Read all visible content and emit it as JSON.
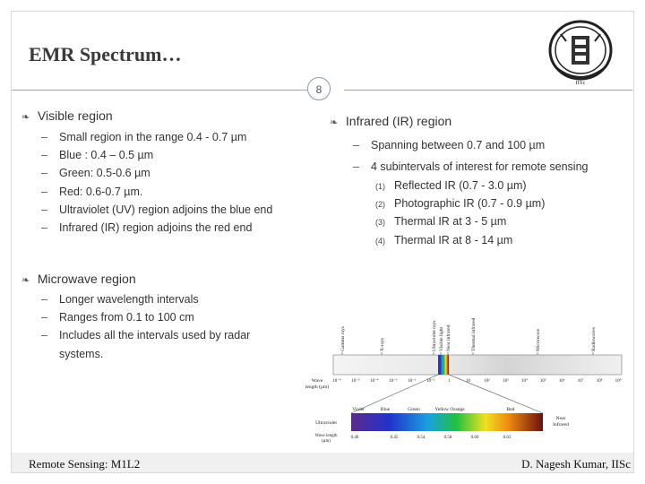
{
  "title": "EMR Spectrum…",
  "slide_number": "8",
  "logo": {
    "icon": "iisc-emblem",
    "text": "IISc"
  },
  "visible": {
    "heading": "Visible region",
    "items": [
      "Small region in the range 0.4 - 0.7 µm",
      "Blue : 0.4 – 0.5 µm",
      "Green: 0.5-0.6 µm",
      "Red: 0.6-0.7 µm.",
      "Ultraviolet (UV) region adjoins the blue end",
      "Infrared (IR) region adjoins the red end"
    ]
  },
  "infrared": {
    "heading": "Infrared (IR) region",
    "items": [
      "Spanning between 0.7 and 100 µm",
      "4 subintervals of interest for remote sensing"
    ],
    "subintervals": [
      {
        "num": "(1)",
        "text": "Reflected IR (0.7 - 3.0 µm)"
      },
      {
        "num": "(2)",
        "text": "Photographic IR (0.7 - 0.9 µm)"
      },
      {
        "num": "(3)",
        "text": "Thermal IR at 3 - 5 µm"
      },
      {
        "num": "(4)",
        "text": "Thermal IR at 8 - 14 µm"
      }
    ]
  },
  "microwave": {
    "heading": "Microwave region",
    "items": [
      "Longer wavelength intervals",
      "Ranges from 0.1 to 100 cm",
      "Includes all the intervals used by radar",
      "systems."
    ]
  },
  "spectrum_figure": {
    "bands_top": [
      "Gamma rays",
      "X-rays",
      "Ultraviolet rays",
      "Visible light",
      "Near infrared",
      "Thermal infrared",
      "Microwave",
      "Radiowaves"
    ],
    "axis_label": "Wave length (µm)",
    "ticks": [
      "10⁻⁶",
      "10⁻⁵",
      "10⁻⁴",
      "10⁻³",
      "10⁻²",
      "10⁻¹",
      "1",
      "10",
      "10²",
      "10³",
      "10⁴",
      "10⁵",
      "10⁶",
      "10⁷",
      "10⁸",
      "10⁹"
    ],
    "colors": [
      "Violet",
      "Blue",
      "Green",
      "Yellow Orange",
      "Red"
    ],
    "side_left": "Ultraviolet",
    "side_right": "Near Infrared",
    "zoom_label": "Wave length (µm)",
    "zoom_ticks": [
      "0.40",
      "0.45",
      "0.54",
      "0.58",
      "0.60",
      "0.63"
    ]
  },
  "footer": {
    "left": "Remote Sensing: M1L2",
    "right": "D. Nagesh Kumar, IISc"
  }
}
